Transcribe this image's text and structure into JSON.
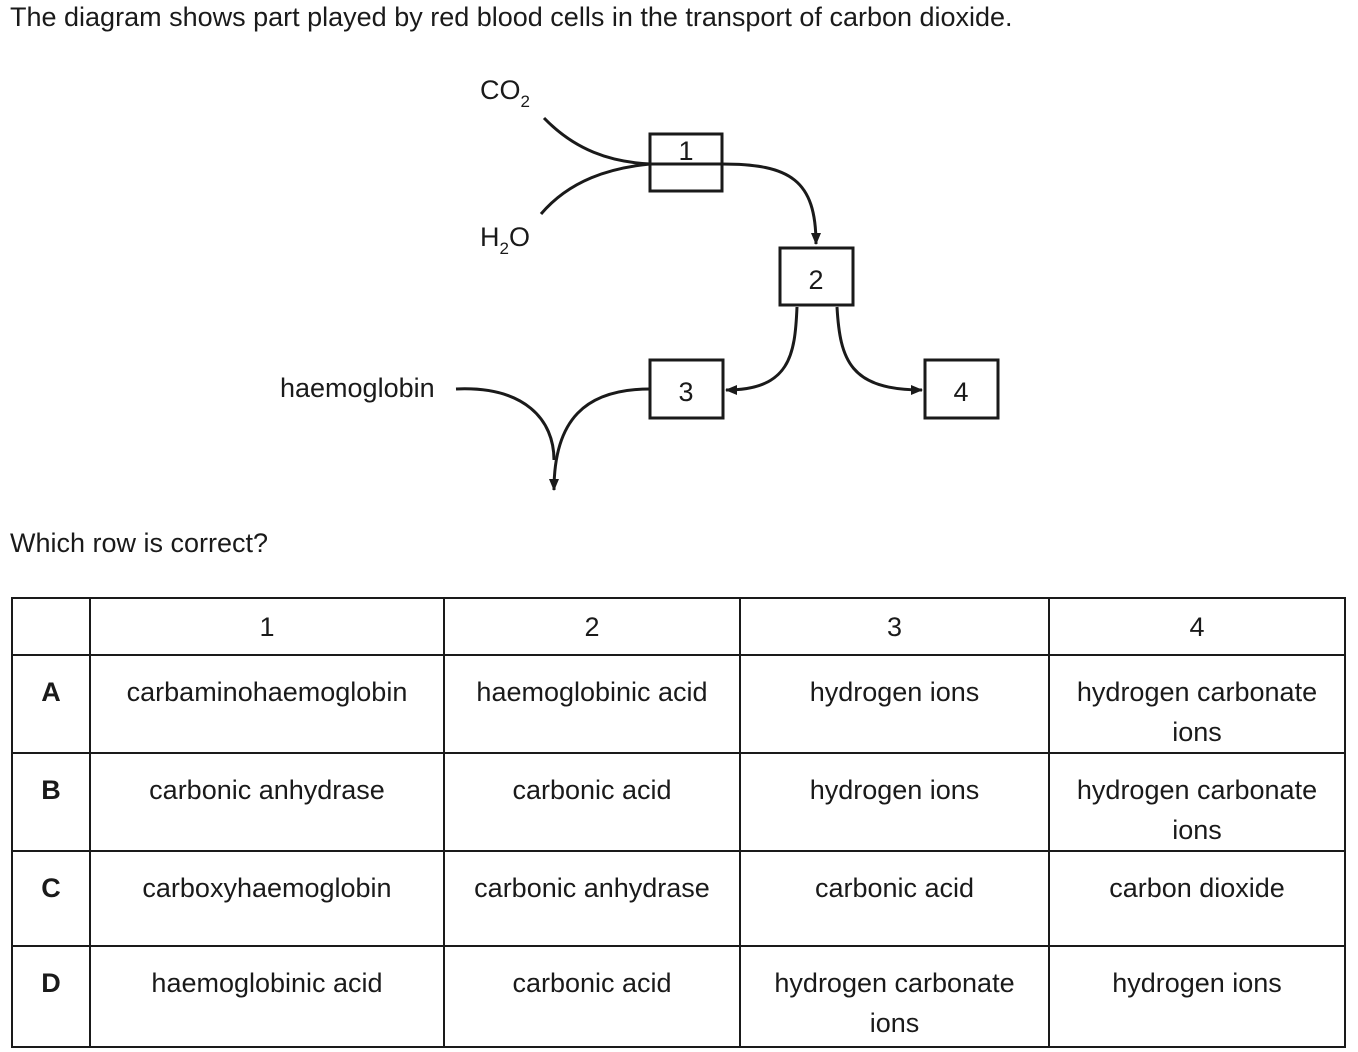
{
  "question": {
    "text": "The diagram shows part played by red blood cells in the transport of carbon dioxide.",
    "prompt": "Which row is correct?"
  },
  "diagram": {
    "labels": {
      "co2_main": "CO",
      "co2_sub": "2",
      "h2o_h": "H",
      "h2o_sub": "2",
      "h2o_o": "O",
      "haemoglobin": "haemoglobin"
    },
    "boxes": [
      "1",
      "2",
      "3",
      "4"
    ]
  },
  "table": {
    "headers": [
      "",
      "1",
      "2",
      "3",
      "4"
    ],
    "rows": [
      {
        "key": "A",
        "cells": [
          "carbaminohaemoglobin",
          "haemoglobinic acid",
          "hydrogen ions",
          "hydrogen carbonate ions"
        ]
      },
      {
        "key": "B",
        "cells": [
          "carbonic anhydrase",
          "carbonic acid",
          "hydrogen ions",
          "hydrogen carbonate ions"
        ]
      },
      {
        "key": "C",
        "cells": [
          "carboxyhaemoglobin",
          "carbonic anhydrase",
          "carbonic acid",
          "carbon dioxide"
        ]
      },
      {
        "key": "D",
        "cells": [
          "haemoglobinic acid",
          "carbonic acid",
          "hydrogen carbonate ions",
          "hydrogen ions"
        ]
      }
    ]
  }
}
